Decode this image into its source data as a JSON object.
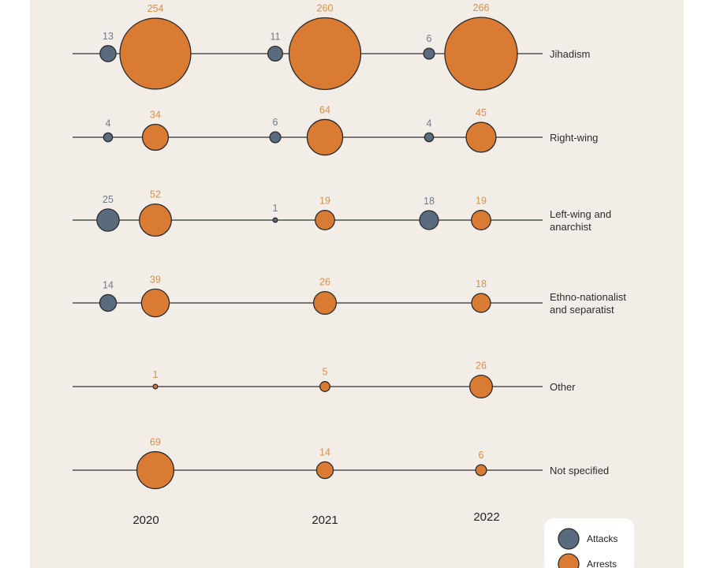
{
  "chart_data": {
    "type": "scatter",
    "title": "",
    "xlabel": "",
    "ylabel": "",
    "years": [
      "2020",
      "2021",
      "2022"
    ],
    "categories": [
      "Jihadism",
      "Right-wing",
      "Left-wing and anarchist",
      "Ethno-nationalist and separatist",
      "Other",
      "Not specified"
    ],
    "category_lines": [
      [
        "Jihadism"
      ],
      [
        "Right-wing"
      ],
      [
        "Left-wing and",
        "anarchist"
      ],
      [
        "Ethno-nationalist",
        "and separatist"
      ],
      [
        "Other"
      ],
      [
        "Not specified"
      ]
    ],
    "series": [
      {
        "name": "Attacks",
        "color": "#5a6b7e",
        "label_color": "#6e7b8a",
        "values": [
          [
            13,
            11,
            6
          ],
          [
            4,
            6,
            4
          ],
          [
            25,
            1,
            18
          ],
          [
            14,
            null,
            null
          ],
          [
            null,
            null,
            null
          ],
          [
            null,
            null,
            null
          ]
        ]
      },
      {
        "name": "Arrests",
        "color": "#d97b33",
        "label_color": "#d98f46",
        "values": [
          [
            254,
            260,
            266
          ],
          [
            34,
            64,
            45
          ],
          [
            52,
            19,
            19
          ],
          [
            39,
            26,
            18
          ],
          [
            1,
            5,
            26
          ],
          [
            69,
            14,
            6
          ]
        ]
      }
    ],
    "legend": {
      "position": "bottom-right",
      "entries": [
        "Attacks",
        "Arrests"
      ]
    }
  }
}
